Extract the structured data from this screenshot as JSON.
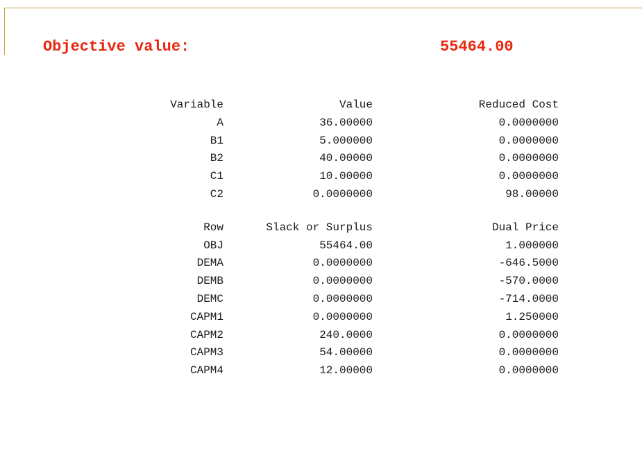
{
  "objective": {
    "label": "Objective value:",
    "value": "55464.00"
  },
  "variables_table": {
    "headers": [
      "Variable",
      "Value",
      "Reduced Cost"
    ],
    "rows": [
      [
        "A",
        "36.00000",
        "0.0000000"
      ],
      [
        "B1",
        "5.000000",
        "0.0000000"
      ],
      [
        "B2",
        "40.00000",
        "0.0000000"
      ],
      [
        "C1",
        "10.00000",
        "0.0000000"
      ],
      [
        "C2",
        "0.0000000",
        "98.00000"
      ]
    ]
  },
  "rows_table": {
    "headers": [
      "Row",
      "Slack or Surplus",
      "Dual Price"
    ],
    "rows": [
      [
        "OBJ",
        "55464.00",
        "1.000000"
      ],
      [
        "DEMA",
        "0.0000000",
        "-646.5000"
      ],
      [
        "DEMB",
        "0.0000000",
        "-570.0000"
      ],
      [
        "DEMC",
        "0.0000000",
        "-714.0000"
      ],
      [
        "CAPM1",
        "0.0000000",
        "1.250000"
      ],
      [
        "CAPM2",
        "240.0000",
        "0.0000000"
      ],
      [
        "CAPM3",
        "54.00000",
        "0.0000000"
      ],
      [
        "CAPM4",
        "12.00000",
        "0.0000000"
      ]
    ]
  },
  "colors": {
    "objective_text": "#e8270e",
    "frame_line": "#c9a24a",
    "report_text": "#1a1a1a"
  }
}
